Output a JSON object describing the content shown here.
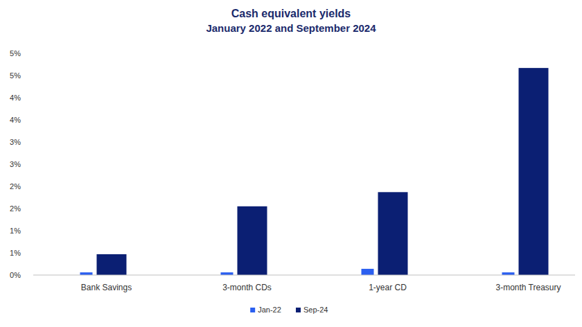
{
  "chart_data": {
    "type": "bar",
    "title": "Cash equivalent yields",
    "subtitle": "January 2022 and September 2024",
    "categories": [
      "Bank Savings",
      "3-month CDs",
      "1-year CD",
      "3-month Treasury"
    ],
    "series": [
      {
        "name": "Jan-22",
        "color": "#2b5ff0",
        "values": [
          0.06,
          0.06,
          0.14,
          0.06
        ]
      },
      {
        "name": "Sep-24",
        "color": "#0b1f73",
        "values": [
          0.47,
          1.55,
          1.87,
          4.67
        ]
      }
    ],
    "ylim": [
      0,
      5
    ],
    "yticks": [
      {
        "value": 0,
        "label": "0%"
      },
      {
        "value": 0.5,
        "label": "1%"
      },
      {
        "value": 1,
        "label": "1%"
      },
      {
        "value": 1.5,
        "label": "2%"
      },
      {
        "value": 2,
        "label": "2%"
      },
      {
        "value": 2.5,
        "label": "3%"
      },
      {
        "value": 3,
        "label": "3%"
      },
      {
        "value": 3.5,
        "label": "4%"
      },
      {
        "value": 4,
        "label": "4%"
      },
      {
        "value": 4.5,
        "label": "5%"
      },
      {
        "value": 5,
        "label": "5%"
      }
    ],
    "grid": false,
    "legend": "bottom"
  }
}
